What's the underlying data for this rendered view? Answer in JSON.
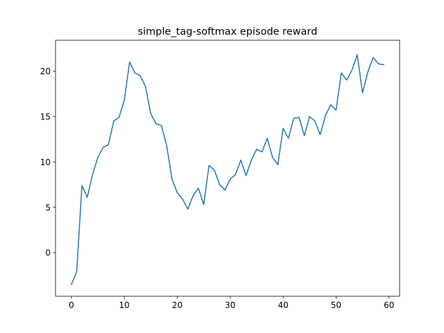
{
  "chart_data": {
    "type": "line",
    "title": "simple_tag-softmax episode reward",
    "xlabel": "",
    "ylabel": "",
    "xlim": [
      -3,
      62
    ],
    "ylim": [
      -4.8,
      23.4
    ],
    "xticks": [
      0,
      10,
      20,
      30,
      40,
      50,
      60
    ],
    "yticks": [
      0,
      5,
      10,
      15,
      20
    ],
    "grid": false,
    "legend": "none",
    "series": [
      {
        "color": "#1f77b4",
        "x": [
          0,
          1,
          2,
          3,
          4,
          5,
          6,
          7,
          8,
          9,
          10,
          11,
          12,
          13,
          14,
          15,
          16,
          17,
          18,
          19,
          20,
          21,
          22,
          23,
          24,
          25,
          26,
          27,
          28,
          29,
          30,
          31,
          32,
          33,
          34,
          35,
          36,
          37,
          38,
          39,
          40,
          41,
          42,
          43,
          44,
          45,
          46,
          47,
          48,
          49,
          50,
          51,
          52,
          53,
          54,
          55,
          56,
          57,
          58,
          59
        ],
        "values": [
          -3.5,
          -2.1,
          7.4,
          6.1,
          8.6,
          10.5,
          11.6,
          11.9,
          14.5,
          14.9,
          16.8,
          21.0,
          19.8,
          19.5,
          18.3,
          15.3,
          14.2,
          14.0,
          11.8,
          8.1,
          6.6,
          5.9,
          4.8,
          6.3,
          7.1,
          5.3,
          9.6,
          9.1,
          7.5,
          6.9,
          8.1,
          8.6,
          10.2,
          8.5,
          10.2,
          11.4,
          11.1,
          12.6,
          10.5,
          9.7,
          13.7,
          12.6,
          14.8,
          14.9,
          12.9,
          15.0,
          14.5,
          13.0,
          15.1,
          16.3,
          15.7,
          19.8,
          19.0,
          20.1,
          21.8,
          17.6,
          19.9,
          21.5,
          20.8,
          20.7
        ]
      }
    ]
  }
}
